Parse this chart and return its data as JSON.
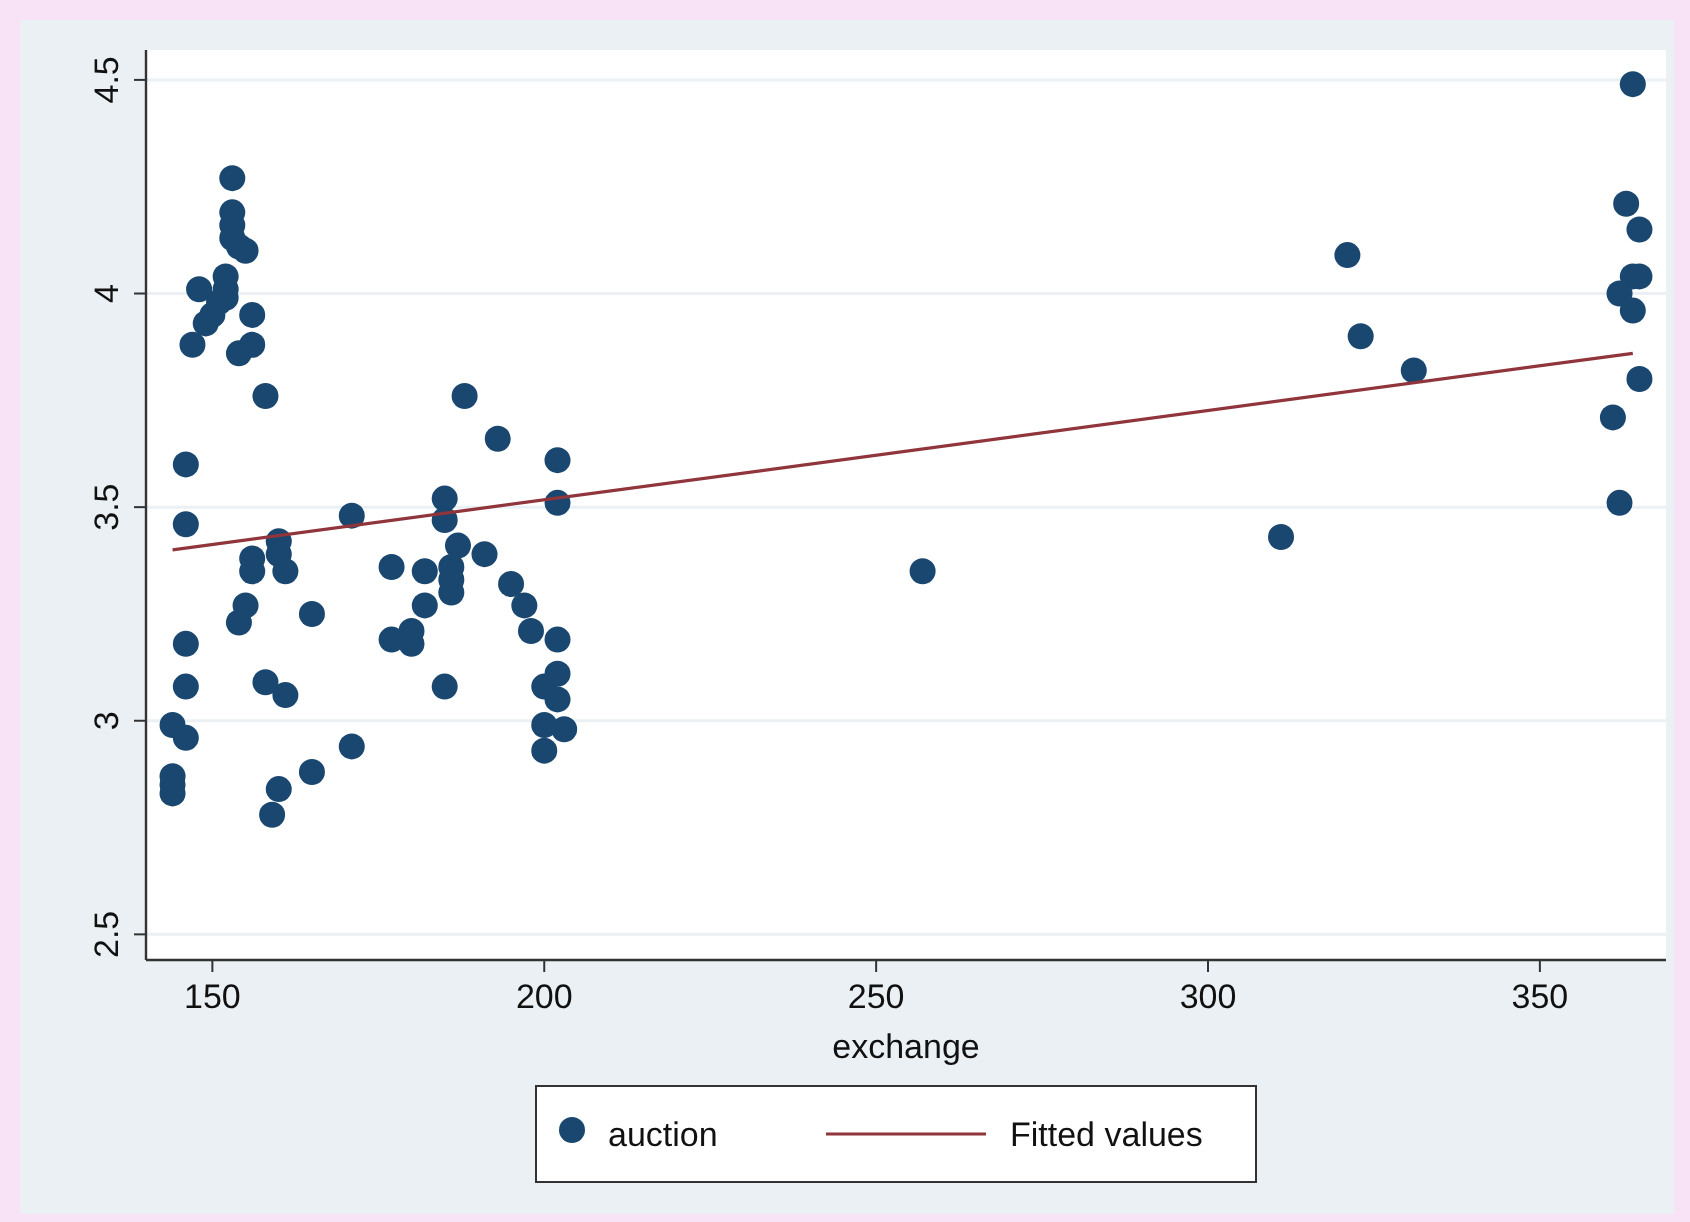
{
  "chart_data": {
    "type": "scatter",
    "xlabel": "exchange",
    "xlim": [
      140,
      369
    ],
    "ylim": [
      2.44,
      4.57
    ],
    "xticks": [
      150,
      200,
      250,
      300,
      350
    ],
    "yticks": [
      2.5,
      3,
      3.5,
      4,
      4.5
    ],
    "grid": "y",
    "legend": "bottom",
    "marker": "circle",
    "series": [
      {
        "name": "auction",
        "color": "#1a476f",
        "x": [
          144,
          144,
          144,
          144,
          146,
          146,
          146,
          146,
          146,
          147,
          148,
          149,
          150,
          151,
          152,
          152,
          152,
          153,
          153,
          153,
          153,
          154,
          155,
          156,
          154,
          156,
          158,
          156,
          156,
          155,
          154,
          160,
          160,
          161,
          158,
          161,
          165,
          160,
          159,
          165,
          171,
          171,
          177,
          177,
          180,
          180,
          182,
          182,
          185,
          185,
          186,
          186,
          186,
          185,
          187,
          188,
          191,
          193,
          195,
          197,
          198,
          202,
          202,
          202,
          200,
          202,
          202,
          200,
          203,
          200,
          257,
          311,
          321,
          323,
          331,
          364,
          363,
          365,
          364,
          365,
          362,
          364,
          365,
          361,
          362
        ],
        "values": [
          2.99,
          2.87,
          2.85,
          2.83,
          2.96,
          3.08,
          3.18,
          3.46,
          3.6,
          3.88,
          4.01,
          3.93,
          3.95,
          3.98,
          4.01,
          4.04,
          3.99,
          4.27,
          4.19,
          4.16,
          4.13,
          4.11,
          4.1,
          3.95,
          3.86,
          3.88,
          3.76,
          3.38,
          3.35,
          3.27,
          3.23,
          3.42,
          3.39,
          3.35,
          3.09,
          3.06,
          3.25,
          2.84,
          2.78,
          2.88,
          3.48,
          2.94,
          3.36,
          3.19,
          3.21,
          3.18,
          3.27,
          3.35,
          3.52,
          3.47,
          3.36,
          3.33,
          3.3,
          3.08,
          3.41,
          3.76,
          3.39,
          3.66,
          3.32,
          3.27,
          3.21,
          3.19,
          3.61,
          3.51,
          3.08,
          3.11,
          3.05,
          2.99,
          2.98,
          2.93,
          3.35,
          3.43,
          4.09,
          3.9,
          3.82,
          4.49,
          4.21,
          4.15,
          4.04,
          4.04,
          4.0,
          3.96,
          3.8,
          3.71,
          3.51
        ]
      },
      {
        "name": "Fitted values",
        "type": "line",
        "color": "#90353b",
        "line_style": "solid",
        "marker": "none",
        "x": [
          144,
          364
        ],
        "values": [
          3.4,
          3.86
        ]
      }
    ]
  }
}
